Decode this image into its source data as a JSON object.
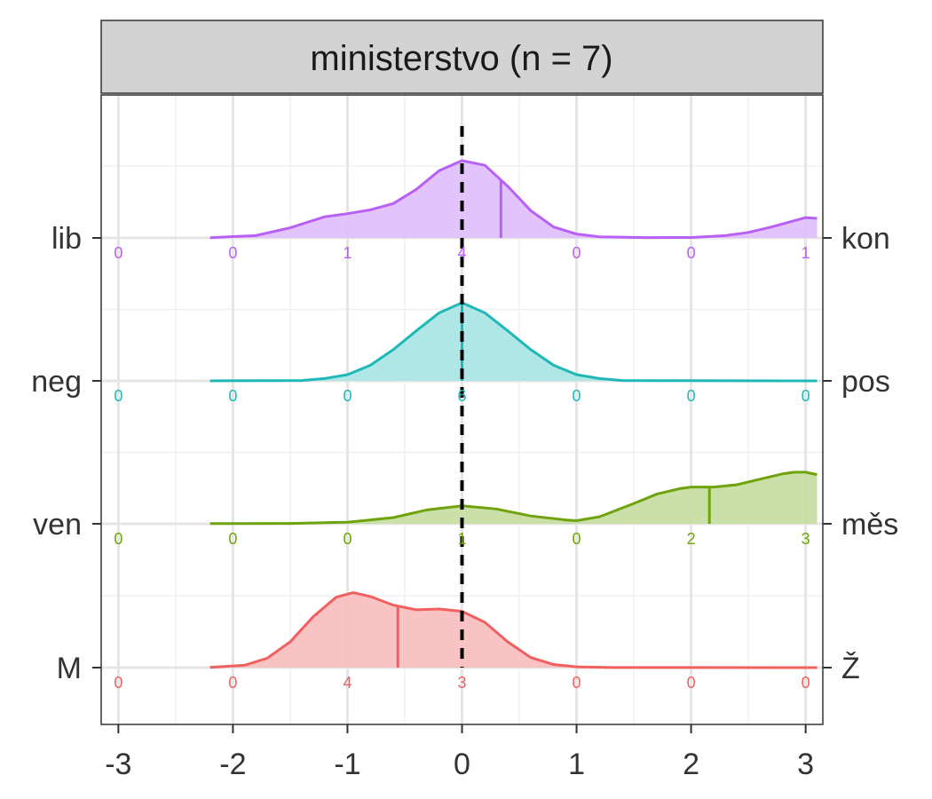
{
  "chart_data": {
    "type": "ridgeline",
    "panel_title": "ministerstvo (n = 7)",
    "xlabel": "",
    "ylabel": "",
    "xlim": [
      -3.15,
      3.15
    ],
    "x_ticks": [
      -3,
      -2,
      -1,
      0,
      1,
      2,
      3
    ],
    "x_tick_labels": [
      "-3",
      "-2",
      "-1",
      "0",
      "1",
      "2",
      "3"
    ],
    "count_positions": [
      -3,
      -2,
      -1,
      0,
      1,
      2,
      3
    ],
    "reference_line_x": 0,
    "grid": true,
    "series": [
      {
        "left_label": "lib",
        "right_label": "kon",
        "color": "#b85ff5",
        "fill": "#e0bcfc",
        "counts": [
          0,
          0,
          1,
          4,
          0,
          0,
          1
        ],
        "mean": 0.34,
        "density": [
          [
            -2.2,
            0.003
          ],
          [
            -1.8,
            0.03
          ],
          [
            -1.5,
            0.13
          ],
          [
            -1.2,
            0.27
          ],
          [
            -1.0,
            0.31
          ],
          [
            -0.8,
            0.36
          ],
          [
            -0.6,
            0.44
          ],
          [
            -0.4,
            0.62
          ],
          [
            -0.2,
            0.86
          ],
          [
            0.0,
            0.99
          ],
          [
            0.2,
            0.93
          ],
          [
            0.4,
            0.66
          ],
          [
            0.6,
            0.35
          ],
          [
            0.8,
            0.14
          ],
          [
            1.0,
            0.05
          ],
          [
            1.2,
            0.015
          ],
          [
            1.6,
            0.004
          ],
          [
            2.0,
            0.006
          ],
          [
            2.3,
            0.03
          ],
          [
            2.5,
            0.07
          ],
          [
            2.7,
            0.14
          ],
          [
            2.85,
            0.2
          ],
          [
            3.0,
            0.26
          ],
          [
            3.1,
            0.25
          ]
        ]
      },
      {
        "left_label": "neg",
        "right_label": "pos",
        "color": "#1fb8b8",
        "fill": "#a6e3e3",
        "counts": [
          0,
          0,
          0,
          6,
          0,
          0,
          0
        ],
        "mean": 0,
        "density": [
          [
            -2.2,
            0.0
          ],
          [
            -1.4,
            0.005
          ],
          [
            -1.2,
            0.03
          ],
          [
            -1.0,
            0.08
          ],
          [
            -0.8,
            0.2
          ],
          [
            -0.6,
            0.4
          ],
          [
            -0.4,
            0.64
          ],
          [
            -0.2,
            0.87
          ],
          [
            0.0,
            1.0
          ],
          [
            0.2,
            0.87
          ],
          [
            0.4,
            0.64
          ],
          [
            0.6,
            0.4
          ],
          [
            0.8,
            0.2
          ],
          [
            1.0,
            0.08
          ],
          [
            1.2,
            0.03
          ],
          [
            1.4,
            0.005
          ],
          [
            3.1,
            0.0
          ]
        ]
      },
      {
        "left_label": "ven",
        "right_label": "měs",
        "color": "#6fa30b",
        "fill": "#c5dc9e",
        "counts": [
          0,
          0,
          0,
          1,
          0,
          0,
          0
        ],
        "right_count_values": [
          2,
          3
        ],
        "mean": 2.16,
        "density": [
          [
            -2.2,
            0.002
          ],
          [
            -1.5,
            0.005
          ],
          [
            -1.0,
            0.02
          ],
          [
            -0.6,
            0.08
          ],
          [
            -0.3,
            0.18
          ],
          [
            0.0,
            0.23
          ],
          [
            0.3,
            0.19
          ],
          [
            0.6,
            0.1
          ],
          [
            0.9,
            0.05
          ],
          [
            1.0,
            0.04
          ],
          [
            1.2,
            0.09
          ],
          [
            1.5,
            0.26
          ],
          [
            1.7,
            0.38
          ],
          [
            1.9,
            0.45
          ],
          [
            2.0,
            0.47
          ],
          [
            2.2,
            0.47
          ],
          [
            2.4,
            0.5
          ],
          [
            2.6,
            0.57
          ],
          [
            2.8,
            0.64
          ],
          [
            2.9,
            0.66
          ],
          [
            3.0,
            0.66
          ],
          [
            3.1,
            0.63
          ]
        ]
      },
      {
        "left_label": "M",
        "right_label": "Ž",
        "color": "#f0605e",
        "fill": "#f9bcbc",
        "counts": [
          0,
          0,
          4,
          3,
          0,
          0,
          0
        ],
        "mean": -0.56,
        "density": [
          [
            -2.2,
            0.003
          ],
          [
            -1.9,
            0.03
          ],
          [
            -1.7,
            0.12
          ],
          [
            -1.5,
            0.33
          ],
          [
            -1.3,
            0.65
          ],
          [
            -1.1,
            0.9
          ],
          [
            -0.95,
            0.96
          ],
          [
            -0.8,
            0.91
          ],
          [
            -0.6,
            0.8
          ],
          [
            -0.4,
            0.74
          ],
          [
            -0.2,
            0.75
          ],
          [
            0.0,
            0.72
          ],
          [
            0.2,
            0.58
          ],
          [
            0.4,
            0.33
          ],
          [
            0.6,
            0.13
          ],
          [
            0.8,
            0.04
          ],
          [
            1.0,
            0.01
          ],
          [
            1.3,
            0.001
          ],
          [
            3.1,
            0.0
          ]
        ]
      }
    ]
  }
}
